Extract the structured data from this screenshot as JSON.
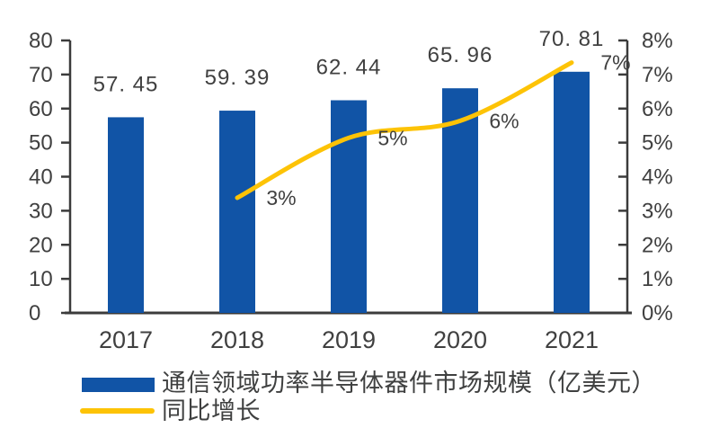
{
  "page": {
    "background": "#FFFFFF",
    "title": ""
  },
  "colors": {
    "bar": "#1154A6",
    "line": "#FDC306",
    "axis": "#3B3B3B",
    "text": "#404040"
  },
  "chart_data": {
    "type": "bar",
    "subtype": "bar-with-secondary-line",
    "title": "",
    "categories": [
      "2017",
      "2018",
      "2019",
      "2020",
      "2021"
    ],
    "series": [
      {
        "name": "通信领域功率半导体器件市场规模（亿美元）",
        "type": "bar",
        "axis": "left",
        "color": "#1154A6",
        "values": [
          57.45,
          59.39,
          62.44,
          65.96,
          70.81
        ],
        "data_labels": [
          "57. 45",
          "59. 39",
          "62. 44",
          "65. 96",
          "70. 81"
        ]
      },
      {
        "name": "同比增长",
        "type": "line",
        "axis": "right",
        "color": "#FDC306",
        "values": [
          null,
          3.38,
          5.14,
          5.64,
          7.35
        ],
        "data_labels": [
          "",
          "3%",
          "5%",
          "6%",
          "7%"
        ]
      }
    ],
    "left_axis": {
      "min": 0,
      "max": 80,
      "step": 10,
      "tick_labels": [
        "0",
        "10",
        "20",
        "30",
        "40",
        "50",
        "60",
        "70",
        "80"
      ]
    },
    "right_axis": {
      "min": 0,
      "max": 8,
      "step": 1,
      "tick_labels": [
        "0%",
        "1%",
        "2%",
        "3%",
        "4%",
        "5%",
        "6%",
        "7%",
        "8%"
      ]
    },
    "grid": false,
    "legend_position": "bottom-left"
  },
  "legend": {
    "items": [
      {
        "label": "通信领域功率半导体器件市场规模（亿美元）",
        "swatch": "bar",
        "color": "#1154A6"
      },
      {
        "label": "同比增长",
        "swatch": "line",
        "color": "#FDC306"
      }
    ]
  }
}
